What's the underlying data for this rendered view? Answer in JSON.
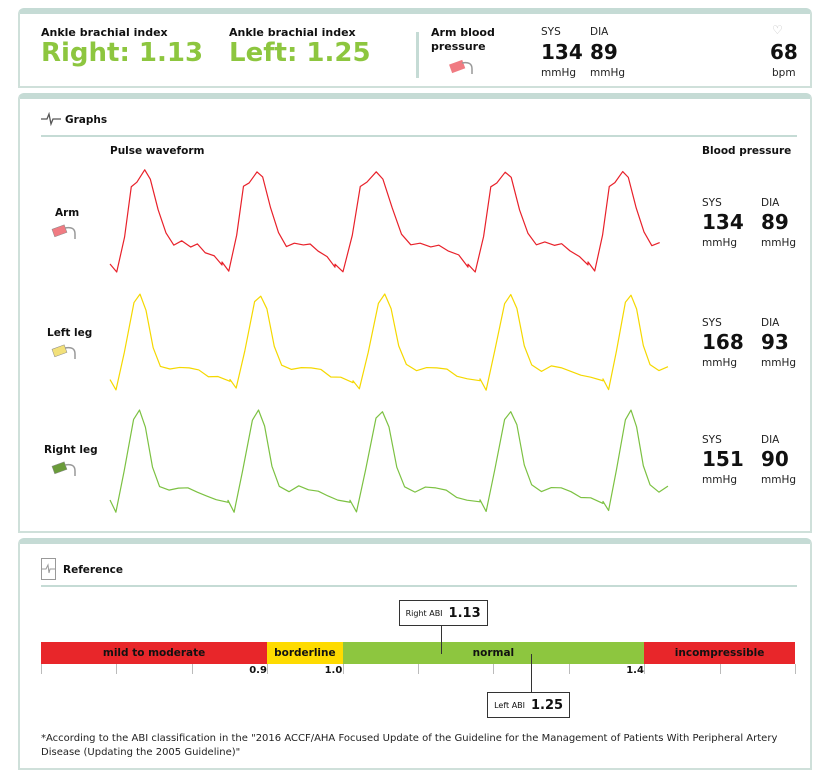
{
  "summary": {
    "abi_right": {
      "label": "Ankle brachial index",
      "value": "Right: 1.13"
    },
    "abi_left": {
      "label": "Ankle brachial index",
      "value": "Left: 1.25"
    },
    "arm_bp": {
      "label": "Arm blood pressure",
      "sys_label": "SYS",
      "dia_label": "DIA",
      "sys": "134",
      "dia": "89",
      "unit": "mmHg"
    },
    "pulse": {
      "value": "68",
      "unit": "bpm",
      "icon": "heart-icon"
    }
  },
  "graphs": {
    "title": "Graphs",
    "waveform_header": "Pulse waveform",
    "bp_header": "Blood pressure",
    "rows": [
      {
        "name": "Arm",
        "color": "#e8212a",
        "cuff_color": "#f07b82",
        "sys": "134",
        "dia": "89"
      },
      {
        "name": "Left leg",
        "color": "#f5d800",
        "cuff_color": "#f2e07a",
        "sys": "168",
        "dia": "93"
      },
      {
        "name": "Right leg",
        "color": "#7cc142",
        "cuff_color": "#6a9b3a",
        "sys": "151",
        "dia": "90"
      }
    ],
    "sys_label": "SYS",
    "dia_label": "DIA",
    "unit": "mmHg"
  },
  "reference": {
    "title": "Reference",
    "scale_min": 0.6,
    "scale_max": 1.6,
    "segments": [
      {
        "label": "mild to moderate",
        "from": 0.6,
        "to": 0.9,
        "color": "#e8262a"
      },
      {
        "label": "borderline",
        "from": 0.9,
        "to": 1.0,
        "color": "#fedb00"
      },
      {
        "label": "normal",
        "from": 1.0,
        "to": 1.4,
        "color": "#8dc63f"
      },
      {
        "label": "incompressible",
        "from": 1.4,
        "to": 1.6,
        "color": "#e8262a"
      }
    ],
    "tick_labels": [
      {
        "value": 0.9,
        "text": "0.9"
      },
      {
        "value": 1.0,
        "text": "1.0"
      },
      {
        "value": 1.4,
        "text": "1.4"
      }
    ],
    "right_abi": {
      "label": "Right ABI",
      "value": 1.13,
      "text": "1.13"
    },
    "left_abi": {
      "label": "Left ABI",
      "value": 1.25,
      "text": "1.25"
    },
    "footnote": "*According to the ABI classification in the \"2016 ACCF/AHA Focused Update of the Guideline for the Management of Patients With Peripheral Artery Disease (Updating the 2005 Guideline)\""
  }
}
